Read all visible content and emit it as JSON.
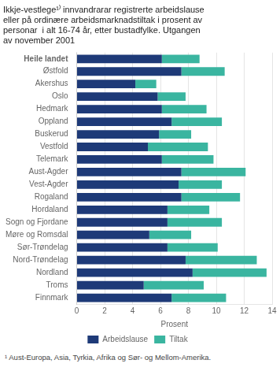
{
  "chart_data": {
    "type": "bar",
    "orientation": "horizontal",
    "stacked": true,
    "title": "Ikkje-vestlege¹⁾ innvandrarar registrerte arbeidslause\neller på ordinære arbeidsmarknadstiltak i prosent av\npersonar  i alt 16-74 år, etter bustadfylke. Utgangen\nav november 2001",
    "annotations": [
      "¹ Aust-Europa, Asia, Tyrkia, Afrika og Sør- og Mellom-Amerika."
    ],
    "xlabel": "Prosent",
    "categories": [
      "Heile landet",
      "Østfold",
      "Akershus",
      "Oslo",
      "Hedmark",
      "Oppland",
      "Buskerud",
      "Vestfold",
      "Telemark",
      "Aust-Agder",
      "Vest-Agder",
      "Rogaland",
      "Hordaland",
      "Sogn og Fjordane",
      "Møre og Romsdal",
      "Sør-Trøndelag",
      "Nord-Trøndelag",
      "Nordland",
      "Troms",
      "Finnmark"
    ],
    "series": [
      {
        "name": "Arbeidslause",
        "color": "#1e3a78",
        "values": [
          6.1,
          7.5,
          4.2,
          5.8,
          6.1,
          6.8,
          5.9,
          5.1,
          6.1,
          7.5,
          7.3,
          7.5,
          6.5,
          6.5,
          5.2,
          6.5,
          7.8,
          8.3,
          4.8,
          6.8
        ]
      },
      {
        "name": "Tiltak",
        "color": "#3ab5a0",
        "values": [
          2.7,
          3.1,
          1.5,
          2.0,
          3.2,
          3.6,
          2.3,
          4.3,
          3.7,
          4.6,
          3.1,
          4.2,
          3.0,
          3.9,
          3.0,
          3.6,
          5.1,
          5.3,
          4.3,
          3.9
        ]
      }
    ],
    "xlim": [
      0,
      14
    ],
    "xticks": [
      0,
      2,
      4,
      6,
      8,
      10,
      12,
      14
    ],
    "grid": true,
    "legend": "bottom"
  }
}
